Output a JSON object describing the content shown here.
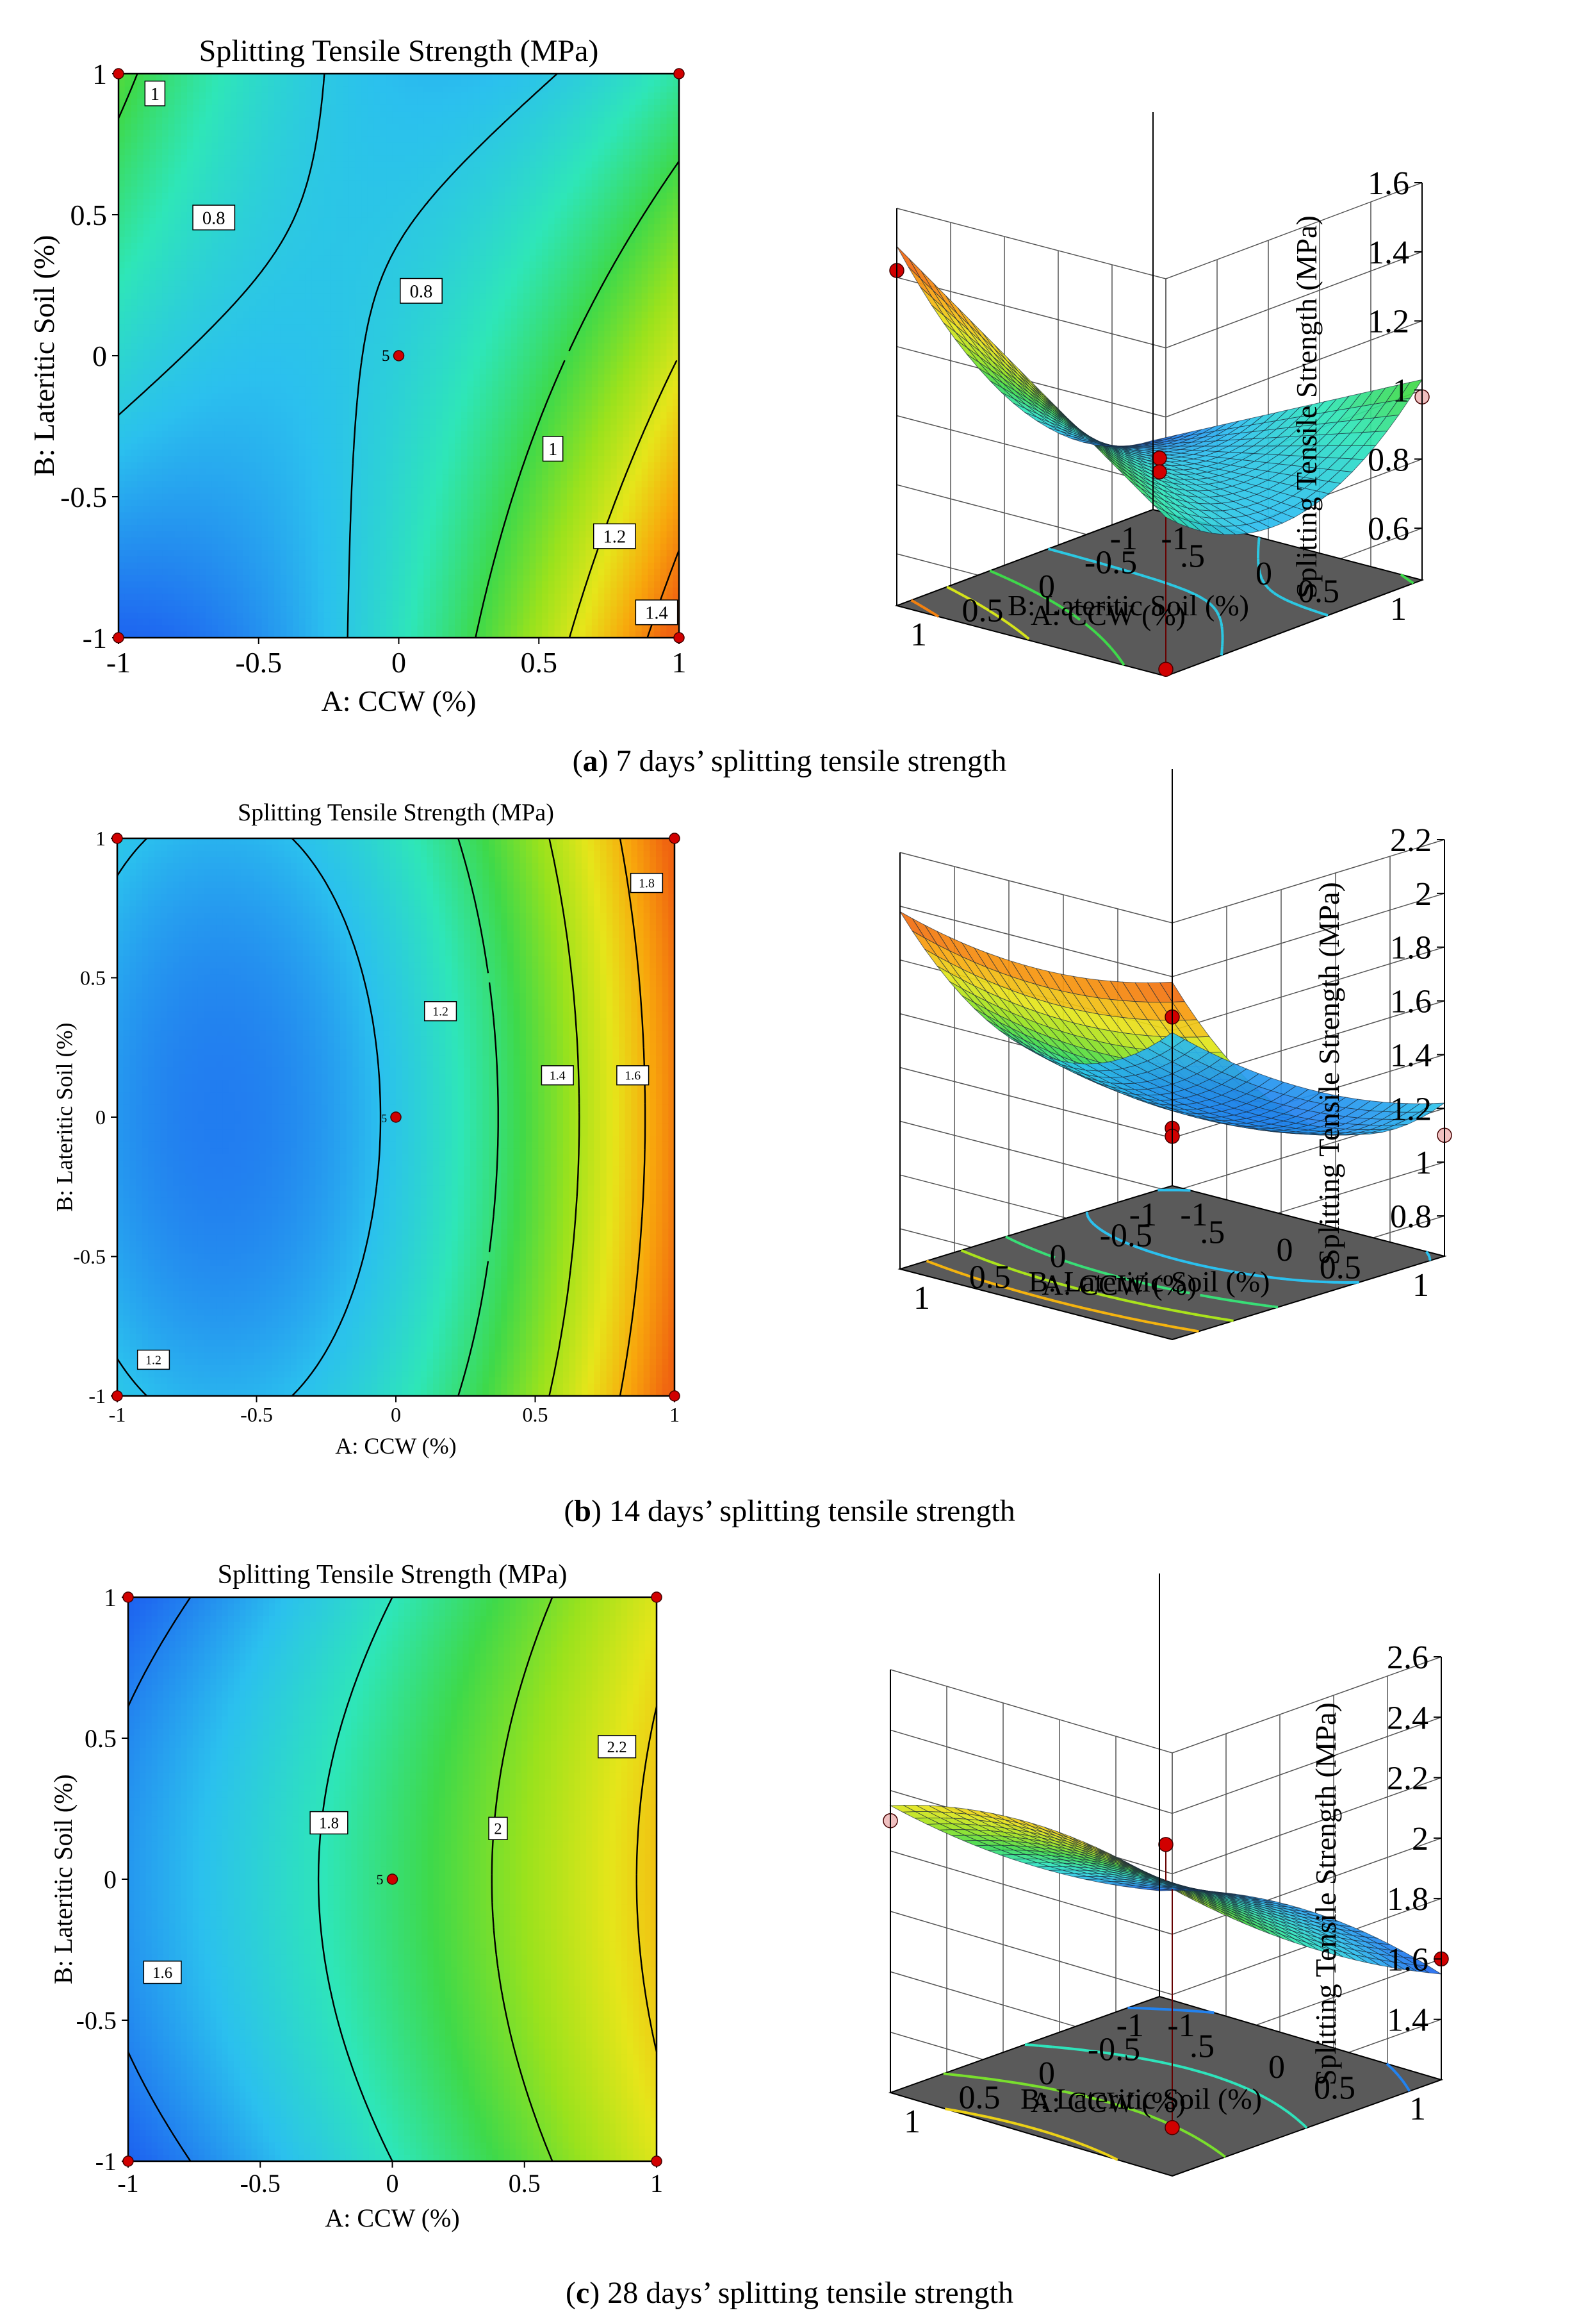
{
  "colors": {
    "surface_floor": "#5a5a5a",
    "marker": "#d10000",
    "marker_light": "#f0c0c0",
    "gradient": [
      "#0a2ee8",
      "#1f6cf0",
      "#2bc0ee",
      "#2ee6b8",
      "#3ed94a",
      "#9be21c",
      "#e6e51a",
      "#f8a60c",
      "#f06410"
    ]
  },
  "chart_data": [
    {
      "panel": "a",
      "contour": {
        "type": "contour",
        "title": "Splitting Tensile Strength (MPa)",
        "xlabel": "A: CCW (%)",
        "ylabel": "B: Lateritic Soil (%)",
        "xlim": [
          -1,
          1
        ],
        "ylim": [
          -1,
          1
        ],
        "xticks": [
          "-1",
          "-0.5",
          "0",
          "0.5",
          "1"
        ],
        "yticks": [
          "-1",
          "-0.5",
          "0",
          "0.5",
          "1"
        ],
        "coefficients": {
          "b0": 0.82,
          "a": 0.18,
          "b": -0.05,
          "ab": -0.24,
          "aa": 0.2,
          "bb": 0.0
        },
        "vmin": 0.55,
        "vmax": 1.45,
        "levels": [
          0.8,
          1.0,
          1.2,
          1.4
        ],
        "level_labels": [
          {
            "text": "1",
            "x": -0.87,
            "y": 0.93
          },
          {
            "text": "0.8",
            "x": -0.66,
            "y": 0.49
          },
          {
            "text": "0.8",
            "x": 0.08,
            "y": 0.23
          },
          {
            "text": "1",
            "x": 0.55,
            "y": -0.33
          },
          {
            "text": "1.2",
            "x": 0.77,
            "y": -0.64
          },
          {
            "text": "1.4",
            "x": 0.92,
            "y": -0.91
          }
        ],
        "center_point": {
          "x": 0,
          "y": 0,
          "label": "5"
        },
        "design_points": [
          [
            -1,
            1
          ],
          [
            1,
            1
          ],
          [
            -1,
            -1
          ],
          [
            1,
            -1
          ]
        ]
      },
      "surface": {
        "type": "surface3d",
        "zlabel": "Splitting Tensile Strength (MPa)",
        "xlabel": "A: CCW (%)",
        "ylabel": "B: Lateritic Soil (%)",
        "zlim": [
          0.45,
          1.6
        ],
        "zticks": [
          "1.6",
          "1.4",
          "1.2",
          "1",
          "0.8",
          "0.6"
        ],
        "xticks": [
          "1",
          "0.5",
          "0",
          "-0.5",
          "-1"
        ],
        "yticks": [
          "1",
          "0.5",
          "0",
          ".5",
          "-1"
        ],
        "points": [
          {
            "x": -1,
            "y": 1,
            "z": 0.98,
            "light": true
          },
          {
            "x": 1,
            "y": -1,
            "z": 1.42,
            "light": false
          },
          {
            "x": 0,
            "y": 0,
            "z": 0.84,
            "light": false
          },
          {
            "x": 0,
            "y": 0,
            "z": 0.8,
            "light": false
          },
          {
            "x": 1,
            "y": 1,
            "z": 0.47,
            "light": false
          }
        ]
      },
      "caption": {
        "letter": "a",
        "text": " 7 days’ splitting tensile strength"
      }
    },
    {
      "panel": "b",
      "contour": {
        "type": "contour",
        "title": "Splitting Tensile Strength (MPa)",
        "xlabel": "A: CCW (%)",
        "ylabel": "B: Lateritic Soil (%)",
        "xlim": [
          -1,
          1
        ],
        "ylim": [
          -1,
          1
        ],
        "xticks": [
          "-1",
          "-0.5",
          "0",
          "0.5",
          "1"
        ],
        "yticks": [
          "-1",
          "-0.5",
          "0",
          "0.5",
          "1"
        ],
        "coefficients": {
          "b0": 1.22,
          "a": 0.38,
          "b": 0.0,
          "ab": 0.0,
          "aa": 0.3,
          "bb": 0.08
        },
        "vmin": 0.95,
        "vmax": 1.95,
        "levels": [
          1.2,
          1.4,
          1.6,
          1.8
        ],
        "level_labels": [
          {
            "text": "1.2",
            "x": 0.16,
            "y": 0.38
          },
          {
            "text": "1.4",
            "x": 0.58,
            "y": 0.15
          },
          {
            "text": "1.6",
            "x": 0.85,
            "y": 0.15
          },
          {
            "text": "1.8",
            "x": 0.9,
            "y": 0.84
          },
          {
            "text": "1.2",
            "x": -0.87,
            "y": -0.87
          }
        ],
        "center_point": {
          "x": 0,
          "y": 0,
          "label": "5"
        },
        "design_points": [
          [
            -1,
            1
          ],
          [
            1,
            1
          ],
          [
            -1,
            -1
          ],
          [
            1,
            -1
          ]
        ]
      },
      "surface": {
        "type": "surface3d",
        "zlabel": "Splitting Tensile Strength (MPa)",
        "xlabel": "A: CCW (%)",
        "ylabel": "B: Lateritic Soil (%)",
        "zlim": [
          0.65,
          2.2
        ],
        "zticks": [
          "2.2",
          "2",
          "1.8",
          "1.6",
          "1.4",
          "1.2",
          "1",
          "0.8"
        ],
        "xticks": [
          "1",
          "0.5",
          "0",
          "-0.5",
          "-1"
        ],
        "yticks": [
          "1",
          "0.5",
          "0",
          ".5",
          "-1"
        ],
        "points": [
          {
            "x": -1,
            "y": 1,
            "z": 1.1,
            "light": true
          },
          {
            "x": 1,
            "y": 1,
            "z": 1.85,
            "light": false
          },
          {
            "x": 0,
            "y": 0,
            "z": 1.15,
            "light": false
          },
          {
            "x": 0,
            "y": 0,
            "z": 1.12,
            "light": false
          }
        ]
      },
      "caption": {
        "letter": "b",
        "text": " 14 days’ splitting tensile strength"
      }
    },
    {
      "panel": "c",
      "contour": {
        "type": "contour",
        "title": "Splitting Tensile Strength (MPa)",
        "xlabel": "A: CCW (%)",
        "ylabel": "B: Lateritic Soil (%)",
        "xlim": [
          -1,
          1
        ],
        "ylim": [
          -1,
          1
        ],
        "xticks": [
          "-1",
          "-0.5",
          "0",
          "0.5",
          "1"
        ],
        "yticks": [
          "-1",
          "-0.5",
          "0",
          "0.5",
          "1"
        ],
        "coefficients": {
          "b0": 1.88,
          "a": 0.3,
          "b": 0.0,
          "ab": 0.0,
          "aa": 0.05,
          "bb": -0.08
        },
        "vmin": 1.45,
        "vmax": 2.4,
        "levels": [
          1.6,
          1.8,
          2.0,
          2.2
        ],
        "level_labels": [
          {
            "text": "1.6",
            "x": -0.87,
            "y": -0.33
          },
          {
            "text": "1.8",
            "x": -0.24,
            "y": 0.2
          },
          {
            "text": "2",
            "x": 0.4,
            "y": 0.18
          },
          {
            "text": "2.2",
            "x": 0.85,
            "y": 0.47
          }
        ],
        "center_point": {
          "x": 0,
          "y": 0,
          "label": "5"
        },
        "design_points": [
          [
            -1,
            1
          ],
          [
            1,
            1
          ],
          [
            -1,
            -1
          ],
          [
            1,
            -1
          ]
        ]
      },
      "surface": {
        "type": "surface3d",
        "zlabel": "Splitting Tensile Strength (MPa)",
        "xlabel": "A: CCW (%)",
        "ylabel": "B: Lateritic Soil (%)",
        "zlim": [
          1.2,
          2.6
        ],
        "zticks": [
          "2.6",
          "2.4",
          "2.2",
          "2",
          "1.8",
          "1.6",
          "1.4"
        ],
        "xticks": [
          "1",
          "0.5",
          "0",
          "-0.5",
          "-1"
        ],
        "yticks": [
          "1",
          "0.5",
          "0",
          ".5",
          "-1"
        ],
        "points": [
          {
            "x": -1,
            "y": 1,
            "z": 1.6,
            "light": false
          },
          {
            "x": 1,
            "y": -1,
            "z": 2.1,
            "light": true
          },
          {
            "x": 0,
            "y": 0,
            "z": 2.0,
            "light": false
          },
          {
            "x": 1,
            "y": 1,
            "z": 1.36,
            "light": false
          }
        ]
      },
      "caption": {
        "letter": "c",
        "text": " 28 days’ splitting tensile strength"
      }
    }
  ]
}
